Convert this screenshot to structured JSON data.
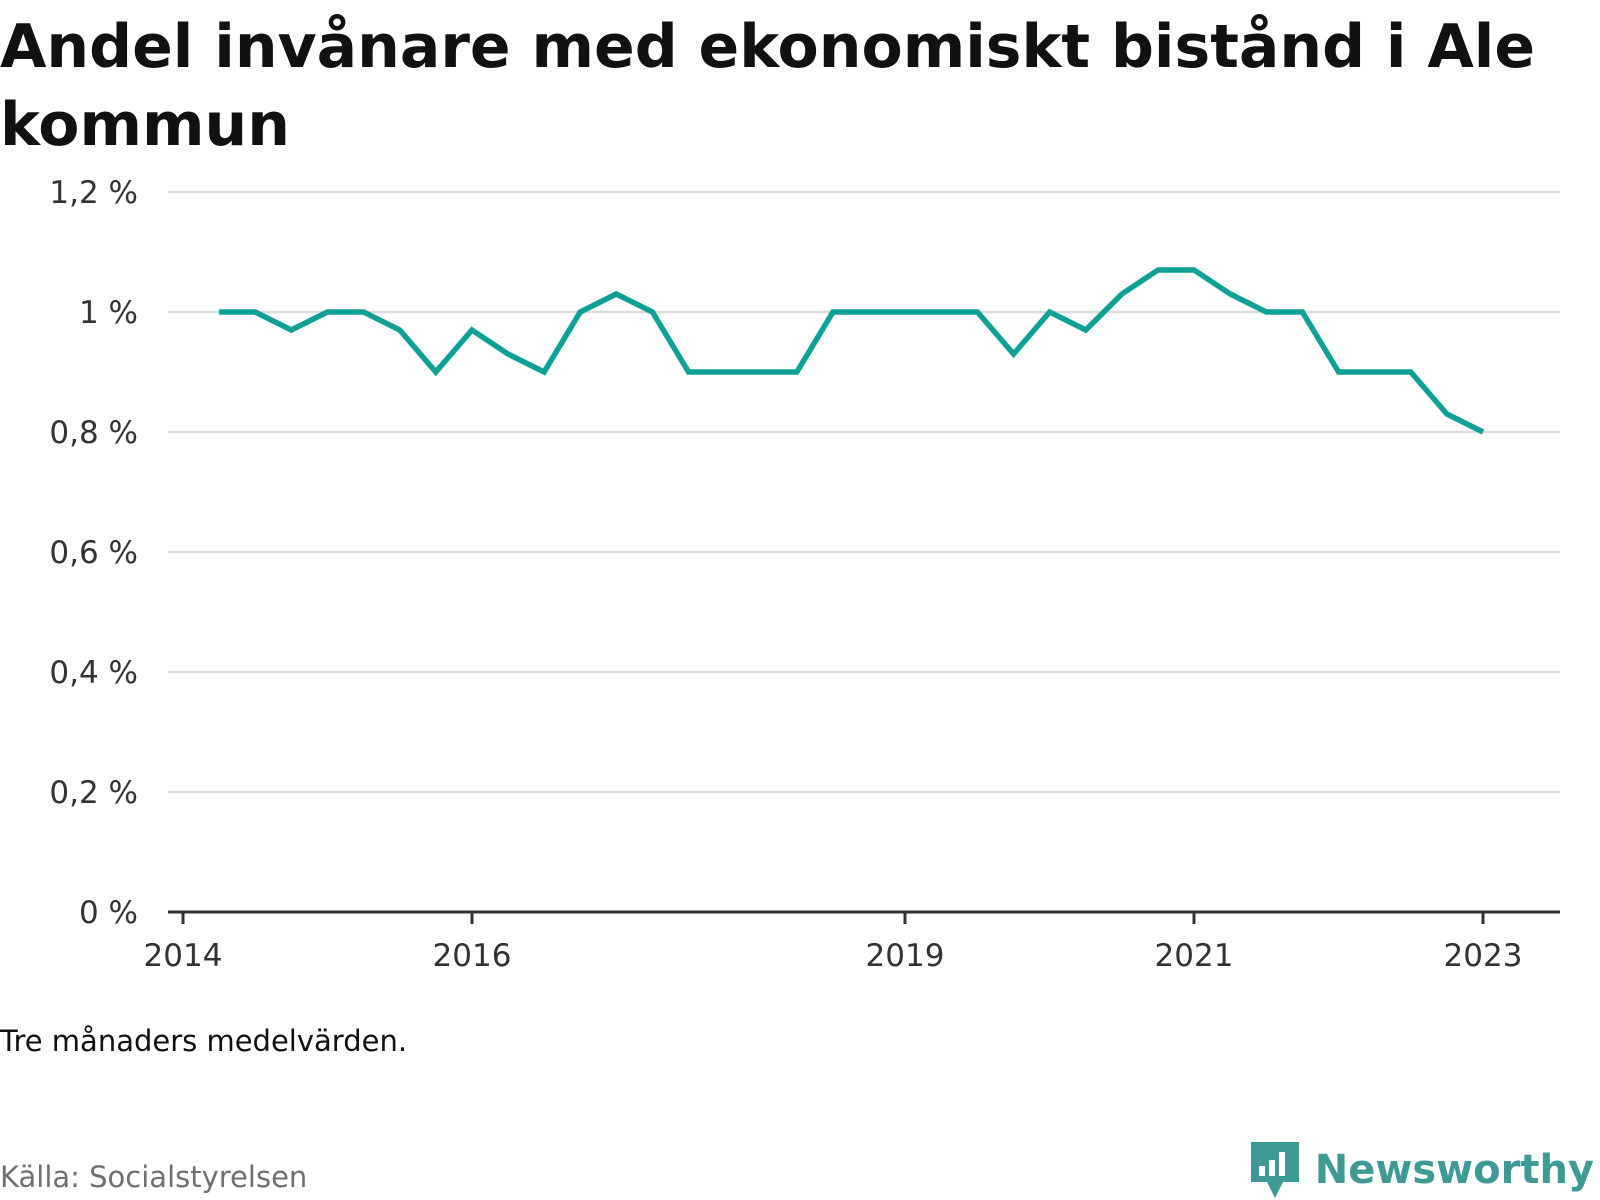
{
  "header": {
    "title": "Andel invånare med ekonomiskt bistånd i Ale kommun"
  },
  "footer": {
    "note": "Tre månaders medelvärden.",
    "source": "Källa: Socialstyrelsen",
    "brand": "Newsworthy",
    "brand_icon": "newsworthy-logo-icon"
  },
  "colors": {
    "line": "#0fa196",
    "grid": "#dcdcdc",
    "axis": "#333333",
    "brand": "#3e9a94"
  },
  "chart_data": {
    "type": "line",
    "title": "Andel invånare med ekonomiskt bistånd i Ale kommun",
    "xlabel": "",
    "ylabel": "",
    "ylim": [
      0,
      1.2
    ],
    "yticks": [
      0,
      0.2,
      0.4,
      0.6,
      0.8,
      1.0,
      1.2
    ],
    "ytick_labels": [
      "0 %",
      "0,2 %",
      "0,4 %",
      "0,6 %",
      "0,8 %",
      "1 %",
      "1,2 %"
    ],
    "xticks": [
      "2014",
      "2016",
      "2019",
      "2021",
      "2023"
    ],
    "grid": true,
    "series": [
      {
        "x": [
          "2014-04",
          "2014-07",
          "2014-10",
          "2015-01",
          "2015-04",
          "2015-07",
          "2015-10",
          "2016-01",
          "2016-04",
          "2016-07",
          "2016-10",
          "2017-01",
          "2017-04",
          "2017-07",
          "2017-10",
          "2018-01",
          "2018-04",
          "2018-07",
          "2018-10",
          "2019-01",
          "2019-04",
          "2019-07",
          "2019-10",
          "2020-01",
          "2020-04",
          "2020-07",
          "2020-10",
          "2021-01",
          "2021-04",
          "2021-07",
          "2021-10",
          "2022-01",
          "2022-04",
          "2022-07",
          "2022-10",
          "2023-01",
          "2023-04"
        ],
        "values": [
          1.0,
          1.0,
          0.97,
          1.0,
          1.0,
          0.97,
          0.9,
          0.97,
          0.93,
          0.9,
          1.0,
          1.03,
          1.0,
          0.9,
          0.9,
          0.9,
          0.9,
          1.0,
          1.0,
          1.0,
          1.0,
          1.0,
          0.93,
          1.0,
          0.97,
          1.03,
          1.07,
          1.07,
          1.03,
          1.0,
          1.0,
          0.9,
          0.9,
          0.9,
          0.83,
          0.8,
          null
        ]
      }
    ]
  }
}
